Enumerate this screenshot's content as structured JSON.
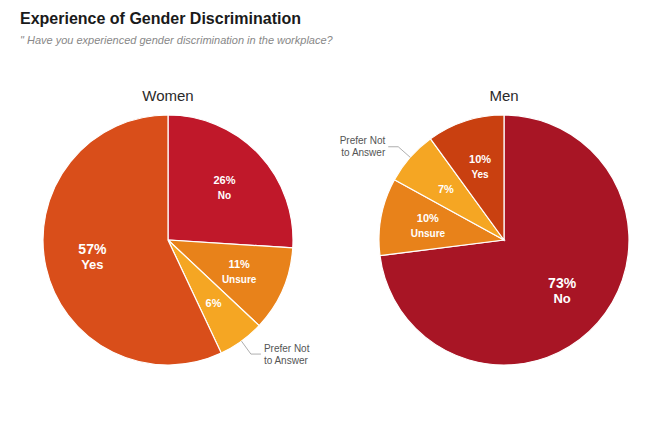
{
  "chart_data": {
    "type": "pie",
    "title": "Experience of Gender Discrimination",
    "subtitle": "\" Have you experienced gender discrimination in the workplace?",
    "categories": [
      "No",
      "Unsure",
      "Prefer Not\nto Answer",
      "Yes"
    ],
    "data_labels": true,
    "series": [
      {
        "name": "Women",
        "values": [
          26,
          11,
          6,
          57
        ],
        "value_labels": [
          "26%",
          "11%",
          "6%",
          "57%"
        ],
        "colors": [
          "#c0182a",
          "#e8821a",
          "#f5a623",
          "#d94e1a"
        ]
      },
      {
        "name": "Men",
        "values": [
          73,
          10,
          7,
          10
        ],
        "value_labels": [
          "73%",
          "10%",
          "7%",
          "10%"
        ],
        "colors": [
          "#a81525",
          "#e8821a",
          "#f5a623",
          "#c94010"
        ]
      }
    ]
  }
}
